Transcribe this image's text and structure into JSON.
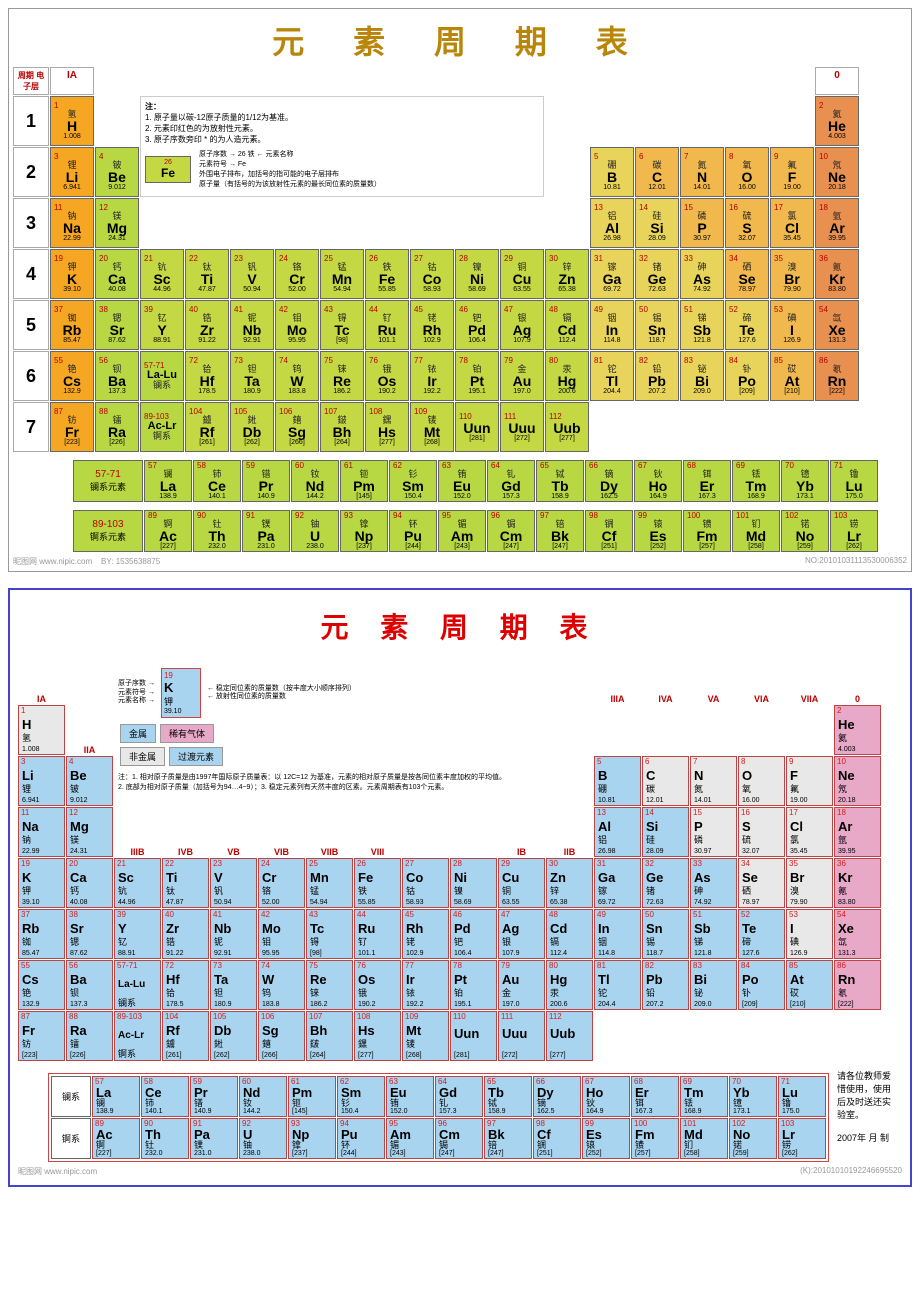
{
  "titles": {
    "top": "元 素 周 期 表",
    "bottom": "元 素 周 期 表"
  },
  "groups": [
    "IA",
    "IIA",
    "IIIB",
    "IVB",
    "VB",
    "VIB",
    "VIIB",
    "VIII",
    "VIII",
    "VIII",
    "IB",
    "IIB",
    "IIIA",
    "IVA",
    "VA",
    "VIA",
    "VIIA",
    "0"
  ],
  "periods": [
    "1",
    "2",
    "3",
    "4",
    "5",
    "6",
    "7"
  ],
  "legend_top": {
    "l1": "注：",
    "l2": "1. 原子量以碳-12原子质量的1/12为基准。",
    "l3": "2. 元素印红色的为放射性元素。",
    "l4": "3. 原子序数旁印 * 的为人造元素。",
    "a1": "原子序数",
    "a2": "元素名称",
    "a3": "元素符号",
    "a4": "原子量（有括号的为该放射性元素的最长同位素的质量数）",
    "a5": "外围电子排布，加括号的指可能的电子层排布"
  },
  "legend_bottom": {
    "t1": "稳定同位素的质量数（按丰度大小顺序排列）",
    "t2": "放射性同位素的质量数",
    "b1": "金属",
    "b2": "稀有气体",
    "b3": "非金属",
    "b4": "过渡元素",
    "n1": "注：1. 相对原子质量是由1997年国际原子质量表：以 12C=12 为基准，元素的相对原子质量是按各同位素丰度加权的平均值。",
    "n2": "2. 底部为相对原子质量（加括号为94…4~9）；3. 稳定元素列有天然丰度的区素。元素周期表有103个元素。",
    "side": "请各位教师爱惜使用，使用后及时送还实验室。",
    "date": "2007年 月 制"
  },
  "colors": {
    "alkali": "#f5a623",
    "alkaline": "#b8d843",
    "transition": "#c4d843",
    "metalloid": "#e8d45a",
    "nonmetal": "#f0b84d",
    "noble": "#e89050",
    "lanth": "#b8d843",
    "b_metal": "#a8d4f0",
    "b_nonmetal": "#e8e8e8",
    "b_noble": "#e8a8c8",
    "b_trans": "#a8d4f0"
  },
  "elements": [
    {
      "n": 1,
      "s": "H",
      "c": "氢",
      "m": "1.008",
      "p": 1,
      "g": 1,
      "cat": "alkali"
    },
    {
      "n": 2,
      "s": "He",
      "c": "氦",
      "m": "4.003",
      "p": 1,
      "g": 18,
      "cat": "noble"
    },
    {
      "n": 3,
      "s": "Li",
      "c": "锂",
      "m": "6.941",
      "p": 2,
      "g": 1,
      "cat": "alkali"
    },
    {
      "n": 4,
      "s": "Be",
      "c": "铍",
      "m": "9.012",
      "p": 2,
      "g": 2,
      "cat": "alkaline"
    },
    {
      "n": 5,
      "s": "B",
      "c": "硼",
      "m": "10.81",
      "p": 2,
      "g": 13,
      "cat": "metalloid"
    },
    {
      "n": 6,
      "s": "C",
      "c": "碳",
      "m": "12.01",
      "p": 2,
      "g": 14,
      "cat": "nonmetal"
    },
    {
      "n": 7,
      "s": "N",
      "c": "氮",
      "m": "14.01",
      "p": 2,
      "g": 15,
      "cat": "nonmetal"
    },
    {
      "n": 8,
      "s": "O",
      "c": "氧",
      "m": "16.00",
      "p": 2,
      "g": 16,
      "cat": "nonmetal"
    },
    {
      "n": 9,
      "s": "F",
      "c": "氟",
      "m": "19.00",
      "p": 2,
      "g": 17,
      "cat": "nonmetal"
    },
    {
      "n": 10,
      "s": "Ne",
      "c": "氖",
      "m": "20.18",
      "p": 2,
      "g": 18,
      "cat": "noble"
    },
    {
      "n": 11,
      "s": "Na",
      "c": "钠",
      "m": "22.99",
      "p": 3,
      "g": 1,
      "cat": "alkali"
    },
    {
      "n": 12,
      "s": "Mg",
      "c": "镁",
      "m": "24.31",
      "p": 3,
      "g": 2,
      "cat": "alkaline"
    },
    {
      "n": 13,
      "s": "Al",
      "c": "铝",
      "m": "26.98",
      "p": 3,
      "g": 13,
      "cat": "metalloid"
    },
    {
      "n": 14,
      "s": "Si",
      "c": "硅",
      "m": "28.09",
      "p": 3,
      "g": 14,
      "cat": "metalloid"
    },
    {
      "n": 15,
      "s": "P",
      "c": "磷",
      "m": "30.97",
      "p": 3,
      "g": 15,
      "cat": "nonmetal"
    },
    {
      "n": 16,
      "s": "S",
      "c": "硫",
      "m": "32.07",
      "p": 3,
      "g": 16,
      "cat": "nonmetal"
    },
    {
      "n": 17,
      "s": "Cl",
      "c": "氯",
      "m": "35.45",
      "p": 3,
      "g": 17,
      "cat": "nonmetal"
    },
    {
      "n": 18,
      "s": "Ar",
      "c": "氩",
      "m": "39.95",
      "p": 3,
      "g": 18,
      "cat": "noble"
    },
    {
      "n": 19,
      "s": "K",
      "c": "钾",
      "m": "39.10",
      "p": 4,
      "g": 1,
      "cat": "alkali"
    },
    {
      "n": 20,
      "s": "Ca",
      "c": "钙",
      "m": "40.08",
      "p": 4,
      "g": 2,
      "cat": "alkaline"
    },
    {
      "n": 21,
      "s": "Sc",
      "c": "钪",
      "m": "44.96",
      "p": 4,
      "g": 3,
      "cat": "transition"
    },
    {
      "n": 22,
      "s": "Ti",
      "c": "钛",
      "m": "47.87",
      "p": 4,
      "g": 4,
      "cat": "transition"
    },
    {
      "n": 23,
      "s": "V",
      "c": "钒",
      "m": "50.94",
      "p": 4,
      "g": 5,
      "cat": "transition"
    },
    {
      "n": 24,
      "s": "Cr",
      "c": "铬",
      "m": "52.00",
      "p": 4,
      "g": 6,
      "cat": "transition"
    },
    {
      "n": 25,
      "s": "Mn",
      "c": "锰",
      "m": "54.94",
      "p": 4,
      "g": 7,
      "cat": "transition"
    },
    {
      "n": 26,
      "s": "Fe",
      "c": "铁",
      "m": "55.85",
      "p": 4,
      "g": 8,
      "cat": "transition"
    },
    {
      "n": 27,
      "s": "Co",
      "c": "钴",
      "m": "58.93",
      "p": 4,
      "g": 9,
      "cat": "transition"
    },
    {
      "n": 28,
      "s": "Ni",
      "c": "镍",
      "m": "58.69",
      "p": 4,
      "g": 10,
      "cat": "transition"
    },
    {
      "n": 29,
      "s": "Cu",
      "c": "铜",
      "m": "63.55",
      "p": 4,
      "g": 11,
      "cat": "transition"
    },
    {
      "n": 30,
      "s": "Zn",
      "c": "锌",
      "m": "65.38",
      "p": 4,
      "g": 12,
      "cat": "transition"
    },
    {
      "n": 31,
      "s": "Ga",
      "c": "镓",
      "m": "69.72",
      "p": 4,
      "g": 13,
      "cat": "metalloid"
    },
    {
      "n": 32,
      "s": "Ge",
      "c": "锗",
      "m": "72.63",
      "p": 4,
      "g": 14,
      "cat": "metalloid"
    },
    {
      "n": 33,
      "s": "As",
      "c": "砷",
      "m": "74.92",
      "p": 4,
      "g": 15,
      "cat": "metalloid"
    },
    {
      "n": 34,
      "s": "Se",
      "c": "硒",
      "m": "78.97",
      "p": 4,
      "g": 16,
      "cat": "nonmetal"
    },
    {
      "n": 35,
      "s": "Br",
      "c": "溴",
      "m": "79.90",
      "p": 4,
      "g": 17,
      "cat": "nonmetal"
    },
    {
      "n": 36,
      "s": "Kr",
      "c": "氪",
      "m": "83.80",
      "p": 4,
      "g": 18,
      "cat": "noble"
    },
    {
      "n": 37,
      "s": "Rb",
      "c": "铷",
      "m": "85.47",
      "p": 5,
      "g": 1,
      "cat": "alkali"
    },
    {
      "n": 38,
      "s": "Sr",
      "c": "锶",
      "m": "87.62",
      "p": 5,
      "g": 2,
      "cat": "alkaline"
    },
    {
      "n": 39,
      "s": "Y",
      "c": "钇",
      "m": "88.91",
      "p": 5,
      "g": 3,
      "cat": "transition"
    },
    {
      "n": 40,
      "s": "Zr",
      "c": "锆",
      "m": "91.22",
      "p": 5,
      "g": 4,
      "cat": "transition"
    },
    {
      "n": 41,
      "s": "Nb",
      "c": "铌",
      "m": "92.91",
      "p": 5,
      "g": 5,
      "cat": "transition"
    },
    {
      "n": 42,
      "s": "Mo",
      "c": "钼",
      "m": "95.95",
      "p": 5,
      "g": 6,
      "cat": "transition"
    },
    {
      "n": 43,
      "s": "Tc",
      "c": "锝",
      "m": "[98]",
      "p": 5,
      "g": 7,
      "cat": "transition"
    },
    {
      "n": 44,
      "s": "Ru",
      "c": "钌",
      "m": "101.1",
      "p": 5,
      "g": 8,
      "cat": "transition"
    },
    {
      "n": 45,
      "s": "Rh",
      "c": "铑",
      "m": "102.9",
      "p": 5,
      "g": 9,
      "cat": "transition"
    },
    {
      "n": 46,
      "s": "Pd",
      "c": "钯",
      "m": "106.4",
      "p": 5,
      "g": 10,
      "cat": "transition"
    },
    {
      "n": 47,
      "s": "Ag",
      "c": "银",
      "m": "107.9",
      "p": 5,
      "g": 11,
      "cat": "transition"
    },
    {
      "n": 48,
      "s": "Cd",
      "c": "镉",
      "m": "112.4",
      "p": 5,
      "g": 12,
      "cat": "transition"
    },
    {
      "n": 49,
      "s": "In",
      "c": "铟",
      "m": "114.8",
      "p": 5,
      "g": 13,
      "cat": "metalloid"
    },
    {
      "n": 50,
      "s": "Sn",
      "c": "锡",
      "m": "118.7",
      "p": 5,
      "g": 14,
      "cat": "metalloid"
    },
    {
      "n": 51,
      "s": "Sb",
      "c": "锑",
      "m": "121.8",
      "p": 5,
      "g": 15,
      "cat": "metalloid"
    },
    {
      "n": 52,
      "s": "Te",
      "c": "碲",
      "m": "127.6",
      "p": 5,
      "g": 16,
      "cat": "metalloid"
    },
    {
      "n": 53,
      "s": "I",
      "c": "碘",
      "m": "126.9",
      "p": 5,
      "g": 17,
      "cat": "nonmetal"
    },
    {
      "n": 54,
      "s": "Xe",
      "c": "氙",
      "m": "131.3",
      "p": 5,
      "g": 18,
      "cat": "noble"
    },
    {
      "n": 55,
      "s": "Cs",
      "c": "铯",
      "m": "132.9",
      "p": 6,
      "g": 1,
      "cat": "alkali"
    },
    {
      "n": 56,
      "s": "Ba",
      "c": "钡",
      "m": "137.3",
      "p": 6,
      "g": 2,
      "cat": "alkaline"
    },
    {
      "n": 72,
      "s": "Hf",
      "c": "铪",
      "m": "178.5",
      "p": 6,
      "g": 4,
      "cat": "transition"
    },
    {
      "n": 73,
      "s": "Ta",
      "c": "钽",
      "m": "180.9",
      "p": 6,
      "g": 5,
      "cat": "transition"
    },
    {
      "n": 74,
      "s": "W",
      "c": "钨",
      "m": "183.8",
      "p": 6,
      "g": 6,
      "cat": "transition"
    },
    {
      "n": 75,
      "s": "Re",
      "c": "铼",
      "m": "186.2",
      "p": 6,
      "g": 7,
      "cat": "transition"
    },
    {
      "n": 76,
      "s": "Os",
      "c": "锇",
      "m": "190.2",
      "p": 6,
      "g": 8,
      "cat": "transition"
    },
    {
      "n": 77,
      "s": "Ir",
      "c": "铱",
      "m": "192.2",
      "p": 6,
      "g": 9,
      "cat": "transition"
    },
    {
      "n": 78,
      "s": "Pt",
      "c": "铂",
      "m": "195.1",
      "p": 6,
      "g": 10,
      "cat": "transition"
    },
    {
      "n": 79,
      "s": "Au",
      "c": "金",
      "m": "197.0",
      "p": 6,
      "g": 11,
      "cat": "transition"
    },
    {
      "n": 80,
      "s": "Hg",
      "c": "汞",
      "m": "200.6",
      "p": 6,
      "g": 12,
      "cat": "transition"
    },
    {
      "n": 81,
      "s": "Tl",
      "c": "铊",
      "m": "204.4",
      "p": 6,
      "g": 13,
      "cat": "metalloid"
    },
    {
      "n": 82,
      "s": "Pb",
      "c": "铅",
      "m": "207.2",
      "p": 6,
      "g": 14,
      "cat": "metalloid"
    },
    {
      "n": 83,
      "s": "Bi",
      "c": "铋",
      "m": "209.0",
      "p": 6,
      "g": 15,
      "cat": "metalloid"
    },
    {
      "n": 84,
      "s": "Po",
      "c": "钋",
      "m": "[209]",
      "p": 6,
      "g": 16,
      "cat": "metalloid"
    },
    {
      "n": 85,
      "s": "At",
      "c": "砹",
      "m": "[210]",
      "p": 6,
      "g": 17,
      "cat": "nonmetal"
    },
    {
      "n": 86,
      "s": "Rn",
      "c": "氡",
      "m": "[222]",
      "p": 6,
      "g": 18,
      "cat": "noble"
    },
    {
      "n": 87,
      "s": "Fr",
      "c": "钫",
      "m": "[223]",
      "p": 7,
      "g": 1,
      "cat": "alkali"
    },
    {
      "n": 88,
      "s": "Ra",
      "c": "镭",
      "m": "[226]",
      "p": 7,
      "g": 2,
      "cat": "alkaline"
    },
    {
      "n": 104,
      "s": "Rf",
      "c": "鐪",
      "m": "[261]",
      "p": 7,
      "g": 4,
      "cat": "transition"
    },
    {
      "n": 105,
      "s": "Db",
      "c": "𨧀",
      "m": "[262]",
      "p": 7,
      "g": 5,
      "cat": "transition"
    },
    {
      "n": 106,
      "s": "Sg",
      "c": "𨭎",
      "m": "[266]",
      "p": 7,
      "g": 6,
      "cat": "transition"
    },
    {
      "n": 107,
      "s": "Bh",
      "c": "𨨏",
      "m": "[264]",
      "p": 7,
      "g": 7,
      "cat": "transition"
    },
    {
      "n": 108,
      "s": "Hs",
      "c": "𨭆",
      "m": "[277]",
      "p": 7,
      "g": 8,
      "cat": "transition"
    },
    {
      "n": 109,
      "s": "Mt",
      "c": "鿏",
      "m": "[268]",
      "p": 7,
      "g": 9,
      "cat": "transition"
    },
    {
      "n": 110,
      "s": "Uun",
      "c": "",
      "m": "[281]",
      "p": 7,
      "g": 10,
      "cat": "transition"
    },
    {
      "n": 111,
      "s": "Uuu",
      "c": "",
      "m": "[272]",
      "p": 7,
      "g": 11,
      "cat": "transition"
    },
    {
      "n": 112,
      "s": "Uub",
      "c": "",
      "m": "[277]",
      "p": 7,
      "g": 12,
      "cat": "transition"
    }
  ],
  "lanth_label": {
    "t1": "57-71",
    "t2": "镧系元素",
    "b1": "89-103",
    "b2": "锕系元素"
  },
  "lalu": {
    "r1": "57-71",
    "s1": "La-Lu",
    "c1": "镧系",
    "r2": "89-103",
    "s2": "Ac-Lr",
    "c2": "锕系"
  },
  "lanthanides": [
    {
      "n": 57,
      "s": "La",
      "c": "镧",
      "m": "138.9"
    },
    {
      "n": 58,
      "s": "Ce",
      "c": "铈",
      "m": "140.1"
    },
    {
      "n": 59,
      "s": "Pr",
      "c": "镨",
      "m": "140.9"
    },
    {
      "n": 60,
      "s": "Nd",
      "c": "钕",
      "m": "144.2"
    },
    {
      "n": 61,
      "s": "Pm",
      "c": "钷",
      "m": "[145]"
    },
    {
      "n": 62,
      "s": "Sm",
      "c": "钐",
      "m": "150.4"
    },
    {
      "n": 63,
      "s": "Eu",
      "c": "铕",
      "m": "152.0"
    },
    {
      "n": 64,
      "s": "Gd",
      "c": "钆",
      "m": "157.3"
    },
    {
      "n": 65,
      "s": "Tb",
      "c": "铽",
      "m": "158.9"
    },
    {
      "n": 66,
      "s": "Dy",
      "c": "镝",
      "m": "162.5"
    },
    {
      "n": 67,
      "s": "Ho",
      "c": "钬",
      "m": "164.9"
    },
    {
      "n": 68,
      "s": "Er",
      "c": "铒",
      "m": "167.3"
    },
    {
      "n": 69,
      "s": "Tm",
      "c": "铥",
      "m": "168.9"
    },
    {
      "n": 70,
      "s": "Yb",
      "c": "镱",
      "m": "173.1"
    },
    {
      "n": 71,
      "s": "Lu",
      "c": "镥",
      "m": "175.0"
    }
  ],
  "actinides": [
    {
      "n": 89,
      "s": "Ac",
      "c": "锕",
      "m": "[227]"
    },
    {
      "n": 90,
      "s": "Th",
      "c": "钍",
      "m": "232.0"
    },
    {
      "n": 91,
      "s": "Pa",
      "c": "镤",
      "m": "231.0"
    },
    {
      "n": 92,
      "s": "U",
      "c": "铀",
      "m": "238.0"
    },
    {
      "n": 93,
      "s": "Np",
      "c": "镎",
      "m": "[237]"
    },
    {
      "n": 94,
      "s": "Pu",
      "c": "钚",
      "m": "[244]"
    },
    {
      "n": 95,
      "s": "Am",
      "c": "镅",
      "m": "[243]"
    },
    {
      "n": 96,
      "s": "Cm",
      "c": "锔",
      "m": "[247]"
    },
    {
      "n": 97,
      "s": "Bk",
      "c": "锫",
      "m": "[247]"
    },
    {
      "n": 98,
      "s": "Cf",
      "c": "锎",
      "m": "[251]"
    },
    {
      "n": 99,
      "s": "Es",
      "c": "锿",
      "m": "[252]"
    },
    {
      "n": 100,
      "s": "Fm",
      "c": "镄",
      "m": "[257]"
    },
    {
      "n": 101,
      "s": "Md",
      "c": "钔",
      "m": "[258]"
    },
    {
      "n": 102,
      "s": "No",
      "c": "锘",
      "m": "[259]"
    },
    {
      "n": 103,
      "s": "Lr",
      "c": "铹",
      "m": "[262]"
    }
  ],
  "footer": {
    "left": "昵图网 www.nipic.com",
    "by": "BY: 1535638875",
    "right": "NO:20101031113530006352",
    "right2": "(K):20101010192246695520"
  },
  "hdr": {
    "period": "周期",
    "shell": "电子层"
  }
}
